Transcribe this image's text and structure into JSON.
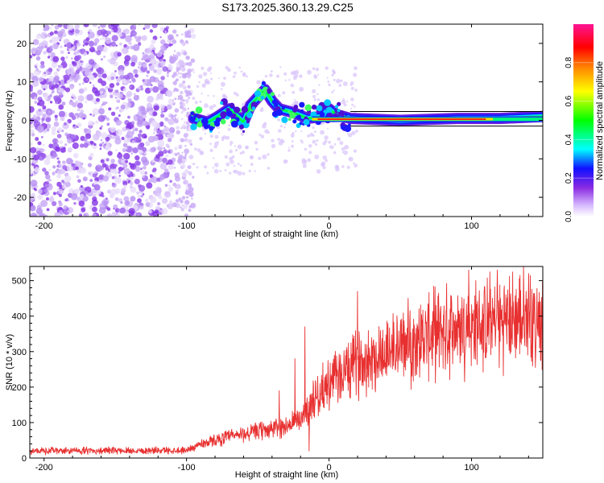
{
  "title": "S173.2025.360.13.29.C25",
  "chart_data": [
    {
      "type": "heatmap",
      "xlabel": "Height of straight line (km)",
      "ylabel": "Frequency (Hz)",
      "xlim": [
        -210,
        150
      ],
      "ylim": [
        -25,
        25
      ],
      "xticks": [
        -200,
        -100,
        0,
        100
      ],
      "yticks": [
        -20,
        -10,
        0,
        10,
        20
      ],
      "grid": false,
      "colorbar": {
        "label": "Normalized spectral amplitude",
        "range": [
          0,
          1
        ],
        "ticks": [
          "0.0",
          "0.2",
          "0.4",
          "0.6",
          "0.8"
        ],
        "colors": [
          "#ffffff",
          "#c9a6ff",
          "#8a2be2",
          "#0000ff",
          "#00ffff",
          "#00ff00",
          "#ffff00",
          "#ff8000",
          "#ff0000",
          "#ff1493"
        ]
      },
      "ridge": [
        {
          "x": -95,
          "f": 0.5
        },
        {
          "x": -85,
          "f": -0.5
        },
        {
          "x": -78,
          "f": 1.0
        },
        {
          "x": -70,
          "f": 3.0
        },
        {
          "x": -60,
          "f": -0.5
        },
        {
          "x": -55,
          "f": 4.0
        },
        {
          "x": -45,
          "f": 8.0
        },
        {
          "x": -40,
          "f": 5.0
        },
        {
          "x": -35,
          "f": 3.0
        },
        {
          "x": -25,
          "f": 2.0
        },
        {
          "x": -15,
          "f": 0.5
        },
        {
          "x": -5,
          "f": 1.0
        },
        {
          "x": 0,
          "f": 3.0
        },
        {
          "x": 5,
          "f": 1.5
        },
        {
          "x": 15,
          "f": 0.5
        },
        {
          "x": 50,
          "f": 0.0
        },
        {
          "x": 90,
          "f": 0.5
        },
        {
          "x": 120,
          "f": 0.5
        },
        {
          "x": 150,
          "f": 1.0
        }
      ]
    },
    {
      "type": "line",
      "xlabel": "Height of straight line (km)",
      "ylabel": "SNR (10 * v/v)",
      "xlim": [
        -210,
        150
      ],
      "ylim": [
        0,
        540
      ],
      "xticks": [
        -200,
        -100,
        0,
        100
      ],
      "yticks": [
        0,
        100,
        200,
        300,
        400,
        500
      ],
      "grid": false,
      "color": "#e83030",
      "trend": [
        {
          "x": -210,
          "y": 20
        },
        {
          "x": -100,
          "y": 22
        },
        {
          "x": -90,
          "y": 40
        },
        {
          "x": -70,
          "y": 60
        },
        {
          "x": -50,
          "y": 75
        },
        {
          "x": -30,
          "y": 90
        },
        {
          "x": -20,
          "y": 110
        },
        {
          "x": -10,
          "y": 170
        },
        {
          "x": 0,
          "y": 210
        },
        {
          "x": 10,
          "y": 240
        },
        {
          "x": 20,
          "y": 270
        },
        {
          "x": 40,
          "y": 300
        },
        {
          "x": 60,
          "y": 330
        },
        {
          "x": 80,
          "y": 360
        },
        {
          "x": 100,
          "y": 370
        },
        {
          "x": 120,
          "y": 385
        },
        {
          "x": 150,
          "y": 400
        }
      ],
      "spikes": [
        {
          "x": -17,
          "y": 370
        },
        {
          "x": -35,
          "y": 190
        },
        {
          "x": -24,
          "y": 280
        },
        {
          "x": -14,
          "y": 20
        },
        {
          "x": 20,
          "y": 470
        },
        {
          "x": 95,
          "y": 215
        },
        {
          "x": 98,
          "y": 530
        },
        {
          "x": 118,
          "y": 530
        },
        {
          "x": 140,
          "y": 520
        },
        {
          "x": 145,
          "y": 290
        }
      ]
    }
  ]
}
